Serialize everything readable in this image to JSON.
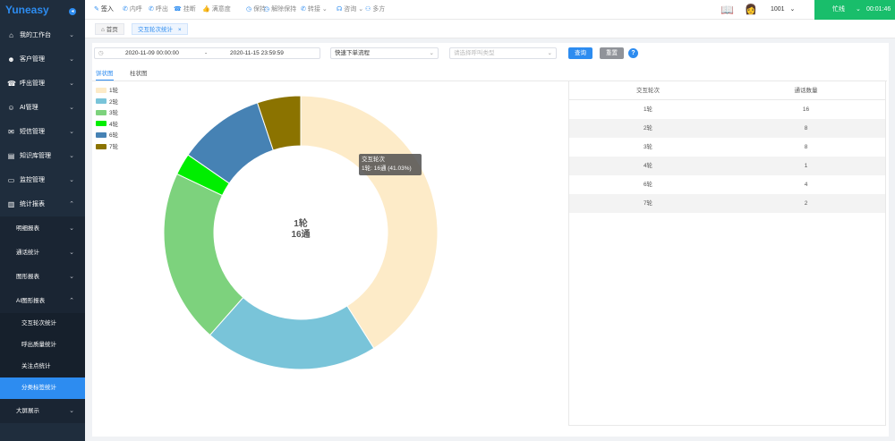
{
  "app": {
    "logo": "Yuneasy"
  },
  "sidebar": {
    "items": [
      {
        "icon": "home-icon",
        "glyph": "⌂",
        "label": "我的工作台"
      },
      {
        "icon": "users-icon",
        "glyph": "☻",
        "label": "客户管理"
      },
      {
        "icon": "phone-icon",
        "glyph": "☎",
        "label": "呼出管理"
      },
      {
        "icon": "robot-icon",
        "glyph": "☺",
        "label": "AI管理"
      },
      {
        "icon": "mail-icon",
        "glyph": "✉",
        "label": "短信管理"
      },
      {
        "icon": "book-icon",
        "glyph": "▤",
        "label": "知识库管理"
      },
      {
        "icon": "monitor-icon",
        "glyph": "▭",
        "label": "监控管理"
      },
      {
        "icon": "chart-icon",
        "glyph": "▥",
        "label": "统计报表"
      }
    ],
    "sub_items": [
      "明细报表",
      "通话统计",
      "图形报表",
      "AI图形报表"
    ],
    "ai_sub_items": [
      "交互轮次统计",
      "呼出质量统计",
      "关注点统计",
      "分类标签统计"
    ],
    "last_item": "大屏展示"
  },
  "topbar": {
    "actions": [
      {
        "icon": "sign-in-icon",
        "glyph": "✎",
        "label": "签入"
      },
      {
        "icon": "internal-call-icon",
        "glyph": "✆",
        "label": "内呼"
      },
      {
        "icon": "outbound-call-icon",
        "glyph": "✆",
        "label": "呼出"
      },
      {
        "icon": "hangup-icon",
        "glyph": "☎",
        "label": "挂断"
      },
      {
        "icon": "satisfaction-icon",
        "glyph": "👍",
        "label": "满意度"
      },
      {
        "icon": "hold-icon",
        "glyph": "◷",
        "label": "保持"
      },
      {
        "icon": "unhold-icon",
        "glyph": "◷",
        "label": "解除保持"
      },
      {
        "icon": "transfer-icon",
        "glyph": "✆",
        "label": "转接"
      },
      {
        "icon": "consult-icon",
        "glyph": "☊",
        "label": "咨询"
      },
      {
        "icon": "conference-icon",
        "glyph": "⚇",
        "label": "多方"
      }
    ],
    "agent_id": "1001",
    "status": "忙线",
    "timer": "00:01:46"
  },
  "tabs": {
    "home": "首页",
    "current": "交互轮次统计"
  },
  "filters": {
    "date_start": "2020-11-09 00:00:00",
    "date_sep": "-",
    "date_end": "2020-11-15 23:59:59",
    "flow_value": "快速下单流程",
    "type_placeholder": "请选择呼叫类型",
    "search_button": "查询",
    "reset_button": "重置",
    "help": "?"
  },
  "view_tabs": {
    "pie": "饼状图",
    "bar": "柱状图"
  },
  "colors": {
    "accent": "#2d8cf0",
    "sidebar_bg": "#1f2d3d",
    "online_green": "#19be6b"
  },
  "chart_data": {
    "type": "pie",
    "donut": true,
    "categories": [
      "1轮",
      "2轮",
      "3轮",
      "4轮",
      "6轮",
      "7轮"
    ],
    "values": [
      16,
      8,
      8,
      1,
      4,
      2
    ],
    "colors": [
      "#fdebc8",
      "#79c4d9",
      "#7dd27d",
      "#00ee00",
      "#4682b4",
      "#8b7300"
    ],
    "legend": [
      "1轮",
      "2轮",
      "3轮",
      "4轮",
      "6轮",
      "7轮"
    ],
    "legend_position": "top-left",
    "center_label": "1轮",
    "center_value": "16通",
    "tooltip": {
      "title": "交互轮次",
      "text": "1轮: 16通 (41.03%)"
    }
  },
  "table": {
    "headers": [
      "交互轮次",
      "通话数量"
    ],
    "rows": [
      [
        "1轮",
        "16"
      ],
      [
        "2轮",
        "8"
      ],
      [
        "3轮",
        "8"
      ],
      [
        "4轮",
        "1"
      ],
      [
        "6轮",
        "4"
      ],
      [
        "7轮",
        "2"
      ]
    ]
  }
}
